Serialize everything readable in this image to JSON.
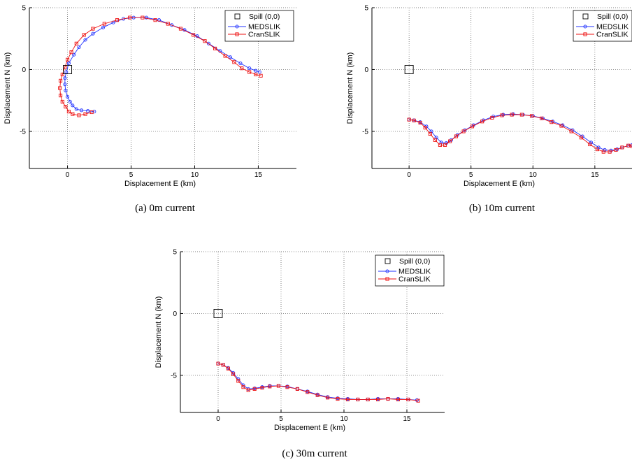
{
  "colors": {
    "medslik": "#2233ff",
    "cranslik": "#ee1111",
    "spill": "#000000",
    "grid": "#555555"
  },
  "chart_data": [
    {
      "type": "line",
      "caption": "(a) 0m current",
      "xlabel": "Displacement E (km)",
      "ylabel": "Displacement N (km)",
      "xlim": [
        -3,
        18
      ],
      "ylim": [
        -8,
        5
      ],
      "xticks": [
        0,
        5,
        10,
        15
      ],
      "yticks": [
        -5,
        0,
        5
      ],
      "grid": true,
      "legend": "top-right",
      "spill_label": "Spill (0,0)",
      "spill": [
        0,
        0
      ],
      "series": [
        {
          "name": "MEDSLIK",
          "color": "#2233ff",
          "marker": "circle",
          "points": [
            [
              2.1,
              -3.4
            ],
            [
              1.6,
              -3.35
            ],
            [
              1.1,
              -3.3
            ],
            [
              0.7,
              -3.2
            ],
            [
              0.4,
              -2.9
            ],
            [
              0.2,
              -2.6
            ],
            [
              0,
              -2.2
            ],
            [
              -0.15,
              -1.7
            ],
            [
              -0.2,
              -1.2
            ],
            [
              -0.2,
              -0.7
            ],
            [
              -0.1,
              -0.2
            ],
            [
              0.1,
              0.5
            ],
            [
              0.5,
              1.2
            ],
            [
              0.9,
              1.8
            ],
            [
              1.4,
              2.4
            ],
            [
              2.0,
              2.9
            ],
            [
              2.8,
              3.4
            ],
            [
              3.6,
              3.8
            ],
            [
              4.4,
              4.1
            ],
            [
              5.2,
              4.2
            ],
            [
              6.2,
              4.2
            ],
            [
              7.2,
              4.0
            ],
            [
              8.2,
              3.6
            ],
            [
              9.2,
              3.2
            ],
            [
              10.2,
              2.7
            ],
            [
              11.1,
              2.1
            ],
            [
              12.0,
              1.5
            ],
            [
              12.8,
              1.0
            ],
            [
              13.6,
              0.5
            ],
            [
              14.3,
              0.1
            ],
            [
              14.8,
              -0.1
            ],
            [
              15.1,
              -0.2
            ]
          ]
        },
        {
          "name": "CranSLIK",
          "color": "#ee1111",
          "marker": "square",
          "points": [
            [
              1.9,
              -3.45
            ],
            [
              1.4,
              -3.6
            ],
            [
              0.9,
              -3.7
            ],
            [
              0.4,
              -3.6
            ],
            [
              0.1,
              -3.4
            ],
            [
              -0.15,
              -3.0
            ],
            [
              -0.4,
              -2.6
            ],
            [
              -0.55,
              -2.1
            ],
            [
              -0.6,
              -1.5
            ],
            [
              -0.55,
              -0.9
            ],
            [
              -0.4,
              -0.4
            ],
            [
              -0.2,
              0.2
            ],
            [
              0.0,
              0.8
            ],
            [
              0.3,
              1.4
            ],
            [
              0.7,
              2.1
            ],
            [
              1.3,
              2.8
            ],
            [
              2.0,
              3.3
            ],
            [
              2.9,
              3.7
            ],
            [
              3.9,
              4.0
            ],
            [
              4.9,
              4.2
            ],
            [
              5.9,
              4.2
            ],
            [
              6.9,
              4.0
            ],
            [
              7.9,
              3.7
            ],
            [
              8.9,
              3.3
            ],
            [
              9.9,
              2.8
            ],
            [
              10.8,
              2.3
            ],
            [
              11.6,
              1.7
            ],
            [
              12.4,
              1.1
            ],
            [
              13.1,
              0.6
            ],
            [
              13.7,
              0.1
            ],
            [
              14.3,
              -0.2
            ],
            [
              14.8,
              -0.4
            ],
            [
              15.2,
              -0.5
            ]
          ]
        }
      ]
    },
    {
      "type": "line",
      "caption": "(b) 10m current",
      "xlabel": "Displacement E (km)",
      "ylabel": "Displacement N (km)",
      "xlim": [
        -3,
        18
      ],
      "ylim": [
        -8,
        5
      ],
      "xticks": [
        0,
        5,
        10,
        15
      ],
      "yticks": [
        -5,
        0,
        5
      ],
      "grid": true,
      "legend": "top-right",
      "spill_label": "Spill (0,0)",
      "spill": [
        0,
        0
      ],
      "series": [
        {
          "name": "MEDSLIK",
          "color": "#2233ff",
          "marker": "circle",
          "points": [
            [
              0,
              -4.05
            ],
            [
              0.4,
              -4.1
            ],
            [
              0.9,
              -4.25
            ],
            [
              1.4,
              -4.6
            ],
            [
              1.8,
              -5.0
            ],
            [
              2.2,
              -5.5
            ],
            [
              2.6,
              -5.9
            ],
            [
              3.0,
              -5.95
            ],
            [
              3.4,
              -5.7
            ],
            [
              3.9,
              -5.3
            ],
            [
              4.5,
              -4.9
            ],
            [
              5.2,
              -4.5
            ],
            [
              6.0,
              -4.1
            ],
            [
              6.8,
              -3.8
            ],
            [
              7.6,
              -3.65
            ],
            [
              8.4,
              -3.6
            ],
            [
              9.2,
              -3.65
            ],
            [
              10.0,
              -3.75
            ],
            [
              10.8,
              -3.95
            ],
            [
              11.6,
              -4.2
            ],
            [
              12.4,
              -4.5
            ],
            [
              13.2,
              -4.9
            ],
            [
              14.0,
              -5.4
            ],
            [
              14.7,
              -5.9
            ],
            [
              15.3,
              -6.3
            ],
            [
              15.8,
              -6.5
            ],
            [
              16.3,
              -6.55
            ],
            [
              16.8,
              -6.45
            ],
            [
              17.2,
              -6.3
            ],
            [
              17.7,
              -6.15
            ],
            [
              18.0,
              -6.1
            ]
          ]
        },
        {
          "name": "CranSLIK",
          "color": "#ee1111",
          "marker": "square",
          "points": [
            [
              0,
              -4.05
            ],
            [
              0.4,
              -4.12
            ],
            [
              0.9,
              -4.3
            ],
            [
              1.3,
              -4.7
            ],
            [
              1.7,
              -5.2
            ],
            [
              2.1,
              -5.7
            ],
            [
              2.5,
              -6.1
            ],
            [
              2.9,
              -6.1
            ],
            [
              3.3,
              -5.8
            ],
            [
              3.8,
              -5.4
            ],
            [
              4.4,
              -5.0
            ],
            [
              5.1,
              -4.6
            ],
            [
              5.9,
              -4.2
            ],
            [
              6.7,
              -3.9
            ],
            [
              7.5,
              -3.7
            ],
            [
              8.3,
              -3.65
            ],
            [
              9.1,
              -3.65
            ],
            [
              9.9,
              -3.75
            ],
            [
              10.7,
              -3.95
            ],
            [
              11.5,
              -4.25
            ],
            [
              12.3,
              -4.55
            ],
            [
              13.1,
              -5.0
            ],
            [
              13.9,
              -5.5
            ],
            [
              14.6,
              -6.05
            ],
            [
              15.2,
              -6.45
            ],
            [
              15.7,
              -6.65
            ],
            [
              16.2,
              -6.65
            ],
            [
              16.7,
              -6.5
            ],
            [
              17.2,
              -6.3
            ],
            [
              17.7,
              -6.15
            ],
            [
              18.0,
              -6.2
            ]
          ]
        }
      ]
    },
    {
      "type": "line",
      "caption": "(c) 30m current",
      "xlabel": "Displacement E (km)",
      "ylabel": "Displacement N (km)",
      "xlim": [
        -3,
        18
      ],
      "ylim": [
        -8,
        5
      ],
      "xticks": [
        0,
        5,
        10,
        15
      ],
      "yticks": [
        -5,
        0,
        5
      ],
      "grid": true,
      "legend": "top-right",
      "spill_label": "Spill (0,0)",
      "spill": [
        0,
        0
      ],
      "series": [
        {
          "name": "MEDSLIK",
          "color": "#2233ff",
          "marker": "circle",
          "points": [
            [
              0,
              -4.05
            ],
            [
              0.4,
              -4.15
            ],
            [
              0.8,
              -4.4
            ],
            [
              1.2,
              -4.8
            ],
            [
              1.6,
              -5.3
            ],
            [
              2.0,
              -5.8
            ],
            [
              2.4,
              -6.1
            ],
            [
              2.9,
              -6.05
            ],
            [
              3.5,
              -5.95
            ],
            [
              4.1,
              -5.85
            ],
            [
              4.8,
              -5.85
            ],
            [
              5.5,
              -5.9
            ],
            [
              6.3,
              -6.1
            ],
            [
              7.1,
              -6.3
            ],
            [
              7.9,
              -6.55
            ],
            [
              8.7,
              -6.75
            ],
            [
              9.5,
              -6.85
            ],
            [
              10.3,
              -6.9
            ],
            [
              11.1,
              -6.95
            ],
            [
              11.9,
              -6.95
            ],
            [
              12.7,
              -6.9
            ],
            [
              13.5,
              -6.9
            ],
            [
              14.3,
              -6.9
            ],
            [
              15.1,
              -6.95
            ],
            [
              15.8,
              -7.0
            ]
          ]
        },
        {
          "name": "CranSLIK",
          "color": "#ee1111",
          "marker": "square",
          "points": [
            [
              0,
              -4.05
            ],
            [
              0.4,
              -4.15
            ],
            [
              0.8,
              -4.45
            ],
            [
              1.2,
              -4.9
            ],
            [
              1.6,
              -5.45
            ],
            [
              2.0,
              -5.95
            ],
            [
              2.4,
              -6.2
            ],
            [
              2.9,
              -6.1
            ],
            [
              3.5,
              -6.0
            ],
            [
              4.1,
              -5.9
            ],
            [
              4.8,
              -5.85
            ],
            [
              5.5,
              -5.95
            ],
            [
              6.3,
              -6.1
            ],
            [
              7.1,
              -6.35
            ],
            [
              7.9,
              -6.6
            ],
            [
              8.7,
              -6.8
            ],
            [
              9.5,
              -6.9
            ],
            [
              10.3,
              -6.95
            ],
            [
              11.1,
              -6.95
            ],
            [
              11.9,
              -6.95
            ],
            [
              12.7,
              -6.95
            ],
            [
              13.5,
              -6.9
            ],
            [
              14.3,
              -6.95
            ],
            [
              15.1,
              -6.95
            ],
            [
              15.9,
              -7.05
            ]
          ]
        }
      ]
    }
  ]
}
